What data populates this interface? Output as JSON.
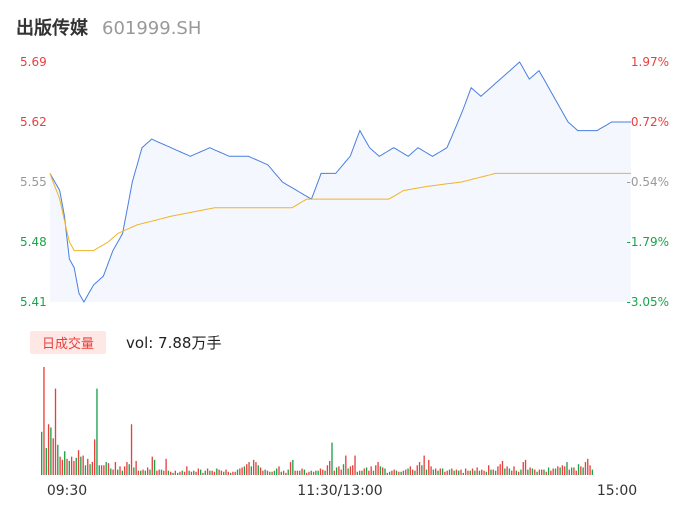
{
  "header": {
    "name": "出版传媒",
    "code": "601999.SH"
  },
  "volume": {
    "tab_label": "日成交量",
    "summary": "vol: 7.88万手"
  },
  "colors": {
    "up": "#e8413d",
    "down": "#1aa34a",
    "price": "#4a7fe0",
    "avg": "#f0b428",
    "neutral": "#999999"
  },
  "chart_data": {
    "type": "line",
    "price_axis": {
      "ticks": [
        "5.69",
        "5.62",
        "5.55",
        "5.48",
        "5.41"
      ],
      "ylim": [
        5.41,
        5.69
      ]
    },
    "pct_axis": {
      "ticks": [
        "1.97%",
        "0.72%",
        "-0.54%",
        "-1.79%",
        "-3.05%"
      ]
    },
    "x_ticks": [
      "09:30",
      "11:30/13:00",
      "15:00"
    ],
    "price_keypoints": [
      [
        0,
        5.56
      ],
      [
        2,
        5.55
      ],
      [
        4,
        5.54
      ],
      [
        6,
        5.51
      ],
      [
        8,
        5.46
      ],
      [
        10,
        5.45
      ],
      [
        12,
        5.42
      ],
      [
        14,
        5.41
      ],
      [
        18,
        5.43
      ],
      [
        22,
        5.44
      ],
      [
        26,
        5.47
      ],
      [
        30,
        5.49
      ],
      [
        34,
        5.55
      ],
      [
        38,
        5.59
      ],
      [
        42,
        5.6
      ],
      [
        50,
        5.59
      ],
      [
        58,
        5.58
      ],
      [
        66,
        5.59
      ],
      [
        74,
        5.58
      ],
      [
        82,
        5.58
      ],
      [
        90,
        5.57
      ],
      [
        96,
        5.55
      ],
      [
        102,
        5.54
      ],
      [
        108,
        5.53
      ],
      [
        112,
        5.56
      ],
      [
        118,
        5.56
      ],
      [
        124,
        5.58
      ],
      [
        128,
        5.61
      ],
      [
        132,
        5.59
      ],
      [
        136,
        5.58
      ],
      [
        142,
        5.59
      ],
      [
        148,
        5.58
      ],
      [
        152,
        5.59
      ],
      [
        158,
        5.58
      ],
      [
        164,
        5.59
      ],
      [
        170,
        5.63
      ],
      [
        174,
        5.66
      ],
      [
        178,
        5.65
      ],
      [
        182,
        5.66
      ],
      [
        186,
        5.67
      ],
      [
        190,
        5.68
      ],
      [
        194,
        5.69
      ],
      [
        198,
        5.67
      ],
      [
        202,
        5.68
      ],
      [
        206,
        5.66
      ],
      [
        210,
        5.64
      ],
      [
        214,
        5.62
      ],
      [
        218,
        5.61
      ],
      [
        222,
        5.61
      ],
      [
        226,
        5.61
      ],
      [
        232,
        5.62
      ],
      [
        236,
        5.62
      ],
      [
        240,
        5.62
      ]
    ],
    "avg_keypoints": [
      [
        0,
        5.56
      ],
      [
        4,
        5.53
      ],
      [
        8,
        5.48
      ],
      [
        10,
        5.47
      ],
      [
        18,
        5.47
      ],
      [
        24,
        5.48
      ],
      [
        28,
        5.49
      ],
      [
        36,
        5.5
      ],
      [
        50,
        5.51
      ],
      [
        68,
        5.52
      ],
      [
        100,
        5.52
      ],
      [
        106,
        5.53
      ],
      [
        140,
        5.53
      ],
      [
        146,
        5.54
      ],
      [
        156,
        5.545
      ],
      [
        170,
        5.55
      ],
      [
        184,
        5.56
      ],
      [
        240,
        5.56
      ]
    ],
    "volume": [
      40,
      100,
      25,
      47,
      44,
      34,
      80,
      28,
      17,
      14,
      22,
      15,
      13,
      17,
      13,
      16,
      23,
      17,
      18,
      9,
      15,
      10,
      12,
      33,
      80,
      9,
      9,
      9,
      12,
      11,
      6,
      5,
      12,
      5,
      8,
      4,
      8,
      12,
      10,
      47,
      7,
      13,
      4,
      4,
      5,
      4,
      7,
      5,
      17,
      14,
      4,
      5,
      5,
      4,
      15,
      4,
      3,
      2,
      4,
      2,
      3,
      4,
      3,
      8,
      4,
      3,
      4,
      3,
      6,
      5,
      2,
      4,
      6,
      4,
      4,
      3,
      6,
      5,
      4,
      3,
      5,
      3,
      2,
      3,
      3,
      5,
      6,
      7,
      8,
      10,
      12,
      8,
      14,
      12,
      9,
      7,
      4,
      5,
      4,
      3,
      3,
      4,
      6,
      8,
      3,
      4,
      2,
      5,
      12,
      14,
      4,
      4,
      4,
      6,
      5,
      2,
      3,
      4,
      3,
      4,
      4,
      6,
      5,
      4,
      9,
      13,
      30,
      4,
      7,
      8,
      5,
      10,
      18,
      6,
      8,
      9,
      18,
      3,
      4,
      4,
      6,
      7,
      4,
      8,
      4,
      9,
      12,
      8,
      7,
      6,
      2,
      3,
      4,
      5,
      4,
      3,
      3,
      4,
      5,
      6,
      8,
      5,
      4,
      9,
      12,
      9,
      18,
      5,
      14,
      8,
      5,
      6,
      4,
      6,
      6,
      3,
      4,
      5,
      6,
      4,
      5,
      4,
      5,
      2,
      6,
      4,
      4,
      6,
      4,
      7,
      4,
      5,
      4,
      3,
      9,
      5,
      5,
      4,
      8,
      10,
      13,
      6,
      8,
      6,
      4,
      8,
      4,
      3,
      5,
      12,
      14,
      5,
      7,
      6,
      5,
      3,
      5,
      5,
      5,
      3,
      7,
      4,
      6,
      6,
      8,
      7,
      9,
      8,
      12,
      5,
      7,
      7,
      4,
      10,
      8,
      7,
      12,
      15,
      9,
      5
    ],
    "volume_up": [
      0,
      1,
      0,
      1,
      0,
      1,
      1,
      0,
      1,
      1,
      0,
      1,
      0,
      1,
      1,
      0,
      1,
      0,
      1,
      0,
      1,
      0,
      1,
      1,
      0,
      0,
      1,
      1,
      0,
      1,
      0,
      1,
      1,
      0,
      1,
      0,
      1,
      1,
      0,
      1,
      0,
      1,
      1,
      0,
      1,
      0,
      1,
      0,
      1,
      0,
      1,
      1,
      0,
      1,
      1,
      0,
      1,
      0,
      1,
      0,
      1,
      0,
      1,
      1,
      0,
      1,
      0,
      1,
      1,
      0,
      1,
      0,
      1,
      0,
      1,
      1,
      0,
      1,
      1,
      0,
      1,
      1,
      0,
      1,
      1,
      0,
      1,
      1,
      0,
      1,
      1,
      0,
      1,
      1,
      0,
      1,
      1,
      0,
      1,
      0,
      1,
      0,
      0,
      1,
      0,
      1,
      1,
      0,
      1,
      0,
      1,
      1,
      0,
      1,
      0,
      1,
      1,
      0,
      1,
      0,
      0,
      1,
      1,
      0,
      1,
      1,
      0,
      1,
      0,
      1,
      1,
      0,
      1,
      0,
      1,
      1,
      1,
      0,
      1,
      0,
      1,
      0,
      1,
      1,
      0,
      1,
      1,
      0,
      1,
      0,
      1,
      0,
      1,
      1,
      0,
      1,
      0,
      1,
      1,
      0,
      1,
      1,
      0,
      1,
      1,
      0,
      1,
      0,
      1,
      1,
      0,
      1,
      0,
      1,
      0,
      1,
      1,
      0,
      1,
      0,
      1,
      0,
      1,
      0,
      1,
      1,
      0,
      1,
      0,
      1,
      0,
      1,
      1,
      0,
      1,
      0,
      1,
      0,
      1,
      1,
      1,
      0,
      1,
      0,
      1,
      1,
      0,
      1,
      0,
      1,
      1,
      0,
      1,
      0,
      1,
      0,
      1,
      1,
      0,
      1,
      0,
      1,
      1,
      0,
      1,
      0,
      1,
      1,
      0,
      1,
      0,
      1,
      1,
      0,
      1,
      0,
      1,
      1,
      1,
      0
    ]
  }
}
